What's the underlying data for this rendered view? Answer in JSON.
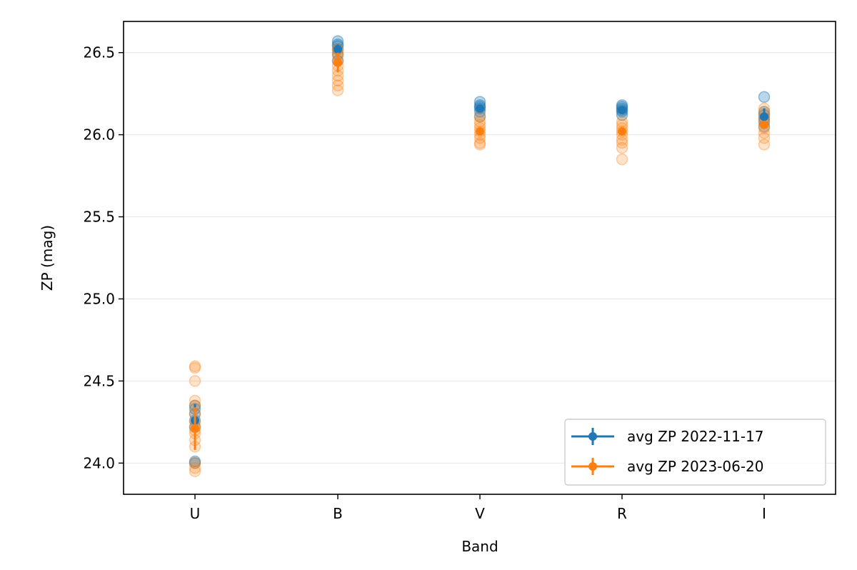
{
  "chart_data": {
    "type": "scatter",
    "title": "",
    "xlabel": "Band",
    "ylabel": "ZP (mag)",
    "categories": [
      "U",
      "B",
      "V",
      "R",
      "I"
    ],
    "ylim": [
      23.81,
      26.69
    ],
    "yticks": [
      "24.0",
      "24.5",
      "25.0",
      "25.5",
      "26.0",
      "26.5"
    ],
    "grid": "horizontal",
    "legend_position": "lower right",
    "series": [
      {
        "name": "avg ZP 2022-11-17",
        "color": "#1f77b4",
        "avg": [
          24.26,
          26.52,
          26.16,
          26.15,
          26.11
        ],
        "err": [
          0.1,
          0.03,
          0.02,
          0.02,
          0.05
        ],
        "points": [
          [
            24.01,
            24.0,
            24.22,
            24.26,
            24.3,
            24.33,
            24.35
          ],
          [
            26.45,
            26.49,
            26.52,
            26.54,
            26.55,
            26.57
          ],
          [
            26.11,
            26.14,
            26.16,
            26.17,
            26.18,
            26.2
          ],
          [
            26.12,
            26.14,
            26.15,
            26.16,
            26.17,
            26.18
          ],
          [
            26.05,
            26.08,
            26.1,
            26.12,
            26.14,
            26.23
          ]
        ]
      },
      {
        "name": "avg ZP 2023-06-20",
        "color": "#ff7f0e",
        "avg": [
          24.21,
          26.44,
          26.02,
          26.02,
          26.06
        ],
        "err": [
          0.13,
          0.06,
          0.02,
          0.02,
          0.02
        ],
        "points": [
          [
            23.95,
            23.97,
            24.0,
            24.1,
            24.14,
            24.18,
            24.2,
            24.22,
            24.25,
            24.3,
            24.35,
            24.38,
            24.5,
            24.58,
            24.59
          ],
          [
            26.27,
            26.3,
            26.33,
            26.36,
            26.39,
            26.42,
            26.45,
            26.48,
            26.5,
            26.52
          ],
          [
            25.94,
            25.95,
            25.98,
            26.0,
            26.02,
            26.04,
            26.06,
            26.08,
            26.11
          ],
          [
            25.85,
            25.92,
            25.95,
            25.97,
            26.0,
            26.02,
            26.04,
            26.06,
            26.08
          ],
          [
            25.94,
            25.98,
            26.01,
            26.04,
            26.07,
            26.1,
            26.13,
            26.16
          ]
        ]
      }
    ]
  }
}
